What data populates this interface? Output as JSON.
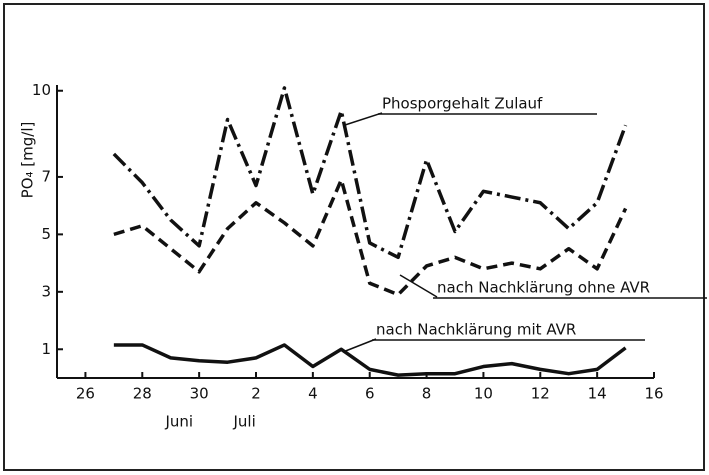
{
  "chart_data": {
    "type": "line",
    "ylabel": "PO₄ [mg/l]",
    "x": [
      1,
      2,
      3,
      4,
      5,
      6,
      7,
      8,
      9,
      10,
      11,
      12,
      13,
      14,
      15,
      16,
      17,
      18,
      19
    ],
    "series": [
      {
        "name": "Phosporgehalt Zulauf",
        "color": "#111111",
        "dash": "16,5,3,5",
        "values": [
          7.8,
          6.8,
          5.5,
          4.6,
          9.0,
          6.7,
          10.1,
          6.4,
          9.3,
          4.7,
          4.2,
          7.6,
          5.1,
          6.5,
          6.3,
          6.1,
          5.2,
          6.1,
          8.8
        ]
      },
      {
        "name": "nach Nachklärung ohne AVR",
        "color": "#111111",
        "dash": "11,6",
        "values": [
          5.0,
          5.3,
          4.5,
          3.7,
          5.2,
          6.1,
          5.4,
          4.6,
          6.9,
          3.3,
          2.9,
          3.9,
          4.2,
          3.8,
          4.0,
          3.8,
          4.5,
          3.8,
          5.9
        ]
      },
      {
        "name": "nach Nachklärung mit AVR",
        "color": "#111111",
        "dash": "none",
        "values": [
          1.15,
          1.15,
          0.7,
          0.6,
          0.55,
          0.7,
          1.15,
          0.4,
          1.0,
          0.3,
          0.1,
          0.15,
          0.15,
          0.4,
          0.5,
          0.3,
          0.15,
          0.3,
          1.05
        ]
      }
    ],
    "xlim": [
      -1,
      20
    ],
    "xticks": [
      {
        "value": 0,
        "label": "26"
      },
      {
        "value": 2,
        "label": "28"
      },
      {
        "value": 4,
        "label": "30"
      },
      {
        "value": 6,
        "label": "2"
      },
      {
        "value": 8,
        "label": "4"
      },
      {
        "value": 10,
        "label": "6"
      },
      {
        "value": 12,
        "label": "8"
      },
      {
        "value": 14,
        "label": "10"
      },
      {
        "value": 16,
        "label": "12"
      },
      {
        "value": 18,
        "label": "14"
      },
      {
        "value": 20,
        "label": "16"
      }
    ],
    "months": [
      {
        "value": 3.3,
        "label": "Juni"
      },
      {
        "value": 5.6,
        "label": "Juli"
      }
    ],
    "ylim": [
      0,
      10.2
    ],
    "yticks": [
      1,
      3,
      5,
      7,
      10
    ]
  }
}
